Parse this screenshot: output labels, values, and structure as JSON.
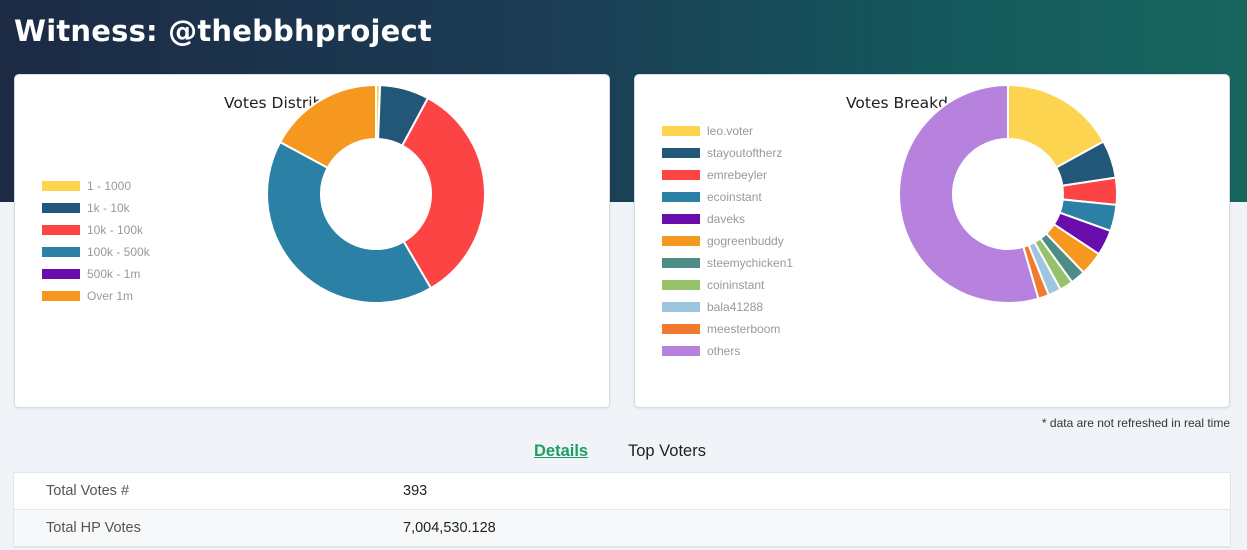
{
  "header": {
    "title": "Witness: @thebbhproject"
  },
  "chart_data": [
    {
      "type": "pie",
      "title": "Votes Distribution (HP)",
      "categories": [
        "1 - 1000",
        "1k - 10k",
        "10k - 100k",
        "100k - 500k",
        "500k - 1m",
        "Over 1m"
      ],
      "values": [
        0.6,
        7.3,
        33.7,
        41.3,
        0,
        17.1
      ],
      "colors": [
        "#fdd44f",
        "#22577a",
        "#fc4445",
        "#2a81a5",
        "#6a0dad",
        "#f6981f"
      ],
      "legend_position": "left"
    },
    {
      "type": "pie",
      "title": "Votes Breakdown (HP)",
      "categories": [
        "leo.voter",
        "stayoutoftherz",
        "emrebeyler",
        "ecoinstant",
        "daveks",
        "gogreenbuddy",
        "steemychicken1",
        "coininstant",
        "bala41288",
        "meesterboom",
        "others"
      ],
      "values": [
        17.0,
        5.6,
        4.0,
        3.9,
        3.8,
        3.5,
        2.2,
        2.0,
        1.9,
        1.6,
        54.5
      ],
      "colors": [
        "#fdd44f",
        "#22577a",
        "#fc4445",
        "#2a81a5",
        "#6a0dad",
        "#f6981f",
        "#4e8c86",
        "#95c26a",
        "#9dc6de",
        "#f27a2f",
        "#b782dd"
      ],
      "legend_position": "left"
    }
  ],
  "note": "* data are not refreshed in real time",
  "tabs": {
    "details": "Details",
    "top_voters": "Top Voters"
  },
  "details": {
    "rows": [
      {
        "label": "Total Votes #",
        "value": "393"
      },
      {
        "label": "Total HP Votes",
        "value": "7,004,530.128"
      }
    ]
  }
}
